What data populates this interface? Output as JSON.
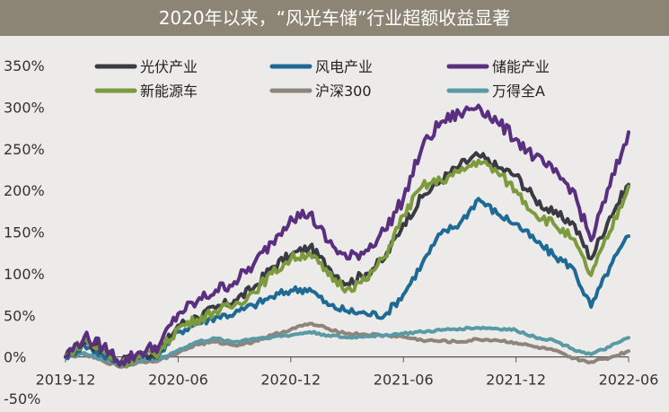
{
  "chart_data": {
    "type": "line",
    "title": "2020年以来，“风光车储”行业超额收益显著",
    "xlabel": "",
    "ylabel": "",
    "x_ticks": [
      "2019-12",
      "2020-06",
      "2020-12",
      "2021-06",
      "2021-12",
      "2022-06"
    ],
    "y_ticks": [
      "350%",
      "300%",
      "250%",
      "200%",
      "150%",
      "100%",
      "50%",
      "0%",
      "-50%"
    ],
    "ylim": [
      -50,
      350
    ],
    "xlim": [
      "2019-12",
      "2022-06"
    ],
    "grid": false,
    "legend_position": "top",
    "series": [
      {
        "name": "光伏产业",
        "color": "#3a3a44",
        "points": [
          [
            "2019-12",
            0
          ],
          [
            "2020-01",
            18
          ],
          [
            "2020-02",
            8
          ],
          [
            "2020-03",
            -5
          ],
          [
            "2020-04",
            2
          ],
          [
            "2020-05",
            6
          ],
          [
            "2020-06",
            38
          ],
          [
            "2020-07",
            48
          ],
          [
            "2020-08",
            58
          ],
          [
            "2020-09",
            68
          ],
          [
            "2020-10",
            82
          ],
          [
            "2020-11",
            108
          ],
          [
            "2020-12",
            122
          ],
          [
            "2021-01",
            132
          ],
          [
            "2021-02",
            108
          ],
          [
            "2021-03",
            88
          ],
          [
            "2021-04",
            100
          ],
          [
            "2021-05",
            118
          ],
          [
            "2021-06",
            160
          ],
          [
            "2021-07",
            192
          ],
          [
            "2021-08",
            212
          ],
          [
            "2021-09",
            230
          ],
          [
            "2021-10",
            242
          ],
          [
            "2021-11",
            228
          ],
          [
            "2021-12",
            218
          ],
          [
            "2022-01",
            190
          ],
          [
            "2022-02",
            172
          ],
          [
            "2022-03",
            162
          ],
          [
            "2022-04",
            118
          ],
          [
            "2022-05",
            168
          ],
          [
            "2022-06",
            207
          ]
        ]
      },
      {
        "name": "风电产业",
        "color": "#1e6a95",
        "points": [
          [
            "2019-12",
            0
          ],
          [
            "2020-01",
            14
          ],
          [
            "2020-02",
            2
          ],
          [
            "2020-03",
            -8
          ],
          [
            "2020-04",
            0
          ],
          [
            "2020-05",
            4
          ],
          [
            "2020-06",
            30
          ],
          [
            "2020-07",
            40
          ],
          [
            "2020-08",
            48
          ],
          [
            "2020-09",
            52
          ],
          [
            "2020-10",
            62
          ],
          [
            "2020-11",
            72
          ],
          [
            "2020-12",
            80
          ],
          [
            "2021-01",
            82
          ],
          [
            "2021-02",
            62
          ],
          [
            "2021-03",
            55
          ],
          [
            "2021-04",
            52
          ],
          [
            "2021-05",
            50
          ],
          [
            "2021-06",
            75
          ],
          [
            "2021-07",
            112
          ],
          [
            "2021-08",
            148
          ],
          [
            "2021-09",
            160
          ],
          [
            "2021-10",
            190
          ],
          [
            "2021-11",
            172
          ],
          [
            "2021-12",
            160
          ],
          [
            "2022-01",
            140
          ],
          [
            "2022-02",
            122
          ],
          [
            "2022-03",
            108
          ],
          [
            "2022-04",
            60
          ],
          [
            "2022-05",
            108
          ],
          [
            "2022-06",
            145
          ]
        ]
      },
      {
        "name": "储能产业",
        "color": "#5a2f7f",
        "points": [
          [
            "2019-12",
            0
          ],
          [
            "2020-01",
            24
          ],
          [
            "2020-02",
            12
          ],
          [
            "2020-03",
            -6
          ],
          [
            "2020-04",
            6
          ],
          [
            "2020-05",
            14
          ],
          [
            "2020-06",
            52
          ],
          [
            "2020-07",
            66
          ],
          [
            "2020-08",
            80
          ],
          [
            "2020-09",
            90
          ],
          [
            "2020-10",
            110
          ],
          [
            "2020-11",
            138
          ],
          [
            "2020-12",
            168
          ],
          [
            "2021-01",
            172
          ],
          [
            "2021-02",
            138
          ],
          [
            "2021-03",
            118
          ],
          [
            "2021-04",
            128
          ],
          [
            "2021-05",
            152
          ],
          [
            "2021-06",
            190
          ],
          [
            "2021-07",
            252
          ],
          [
            "2021-08",
            282
          ],
          [
            "2021-09",
            292
          ],
          [
            "2021-10",
            302
          ],
          [
            "2021-11",
            282
          ],
          [
            "2021-12",
            262
          ],
          [
            "2022-01",
            240
          ],
          [
            "2022-02",
            222
          ],
          [
            "2022-03",
            202
          ],
          [
            "2022-04",
            140
          ],
          [
            "2022-05",
            205
          ],
          [
            "2022-06",
            270
          ]
        ]
      },
      {
        "name": "新能源车",
        "color": "#7d9a3c",
        "points": [
          [
            "2019-12",
            0
          ],
          [
            "2020-01",
            20
          ],
          [
            "2020-02",
            6
          ],
          [
            "2020-03",
            -8
          ],
          [
            "2020-04",
            0
          ],
          [
            "2020-05",
            6
          ],
          [
            "2020-06",
            35
          ],
          [
            "2020-07",
            45
          ],
          [
            "2020-08",
            55
          ],
          [
            "2020-09",
            62
          ],
          [
            "2020-10",
            78
          ],
          [
            "2020-11",
            100
          ],
          [
            "2020-12",
            118
          ],
          [
            "2021-01",
            125
          ],
          [
            "2021-02",
            98
          ],
          [
            "2021-03",
            82
          ],
          [
            "2021-04",
            92
          ],
          [
            "2021-05",
            120
          ],
          [
            "2021-06",
            170
          ],
          [
            "2021-07",
            205
          ],
          [
            "2021-08",
            212
          ],
          [
            "2021-09",
            222
          ],
          [
            "2021-10",
            236
          ],
          [
            "2021-11",
            222
          ],
          [
            "2021-12",
            200
          ],
          [
            "2022-01",
            172
          ],
          [
            "2022-02",
            160
          ],
          [
            "2022-03",
            142
          ],
          [
            "2022-04",
            98
          ],
          [
            "2022-05",
            150
          ],
          [
            "2022-06",
            205
          ]
        ]
      },
      {
        "name": "沪深300",
        "color": "#8e847c",
        "points": [
          [
            "2019-12",
            0
          ],
          [
            "2020-01",
            3
          ],
          [
            "2020-02",
            -5
          ],
          [
            "2020-03",
            -12
          ],
          [
            "2020-04",
            -6
          ],
          [
            "2020-05",
            -4
          ],
          [
            "2020-06",
            5
          ],
          [
            "2020-07",
            15
          ],
          [
            "2020-08",
            18
          ],
          [
            "2020-09",
            14
          ],
          [
            "2020-10",
            18
          ],
          [
            "2020-11",
            26
          ],
          [
            "2020-12",
            33
          ],
          [
            "2021-01",
            40
          ],
          [
            "2021-02",
            34
          ],
          [
            "2021-03",
            28
          ],
          [
            "2021-04",
            27
          ],
          [
            "2021-05",
            26
          ],
          [
            "2021-06",
            24
          ],
          [
            "2021-07",
            20
          ],
          [
            "2021-08",
            19
          ],
          [
            "2021-09",
            18
          ],
          [
            "2021-10",
            21
          ],
          [
            "2021-11",
            20
          ],
          [
            "2021-12",
            17
          ],
          [
            "2022-01",
            12
          ],
          [
            "2022-02",
            8
          ],
          [
            "2022-03",
            -2
          ],
          [
            "2022-04",
            -6
          ],
          [
            "2022-05",
            -1
          ],
          [
            "2022-06",
            7
          ]
        ]
      },
      {
        "name": "万得全A",
        "color": "#5a9aa4",
        "points": [
          [
            "2019-12",
            0
          ],
          [
            "2020-01",
            5
          ],
          [
            "2020-02",
            -3
          ],
          [
            "2020-03",
            -8
          ],
          [
            "2020-04",
            -4
          ],
          [
            "2020-05",
            -2
          ],
          [
            "2020-06",
            8
          ],
          [
            "2020-07",
            18
          ],
          [
            "2020-08",
            22
          ],
          [
            "2020-09",
            18
          ],
          [
            "2020-10",
            22
          ],
          [
            "2020-11",
            24
          ],
          [
            "2020-12",
            26
          ],
          [
            "2021-01",
            30
          ],
          [
            "2021-02",
            26
          ],
          [
            "2021-03",
            23
          ],
          [
            "2021-04",
            25
          ],
          [
            "2021-05",
            26
          ],
          [
            "2021-06",
            28
          ],
          [
            "2021-07",
            30
          ],
          [
            "2021-08",
            32
          ],
          [
            "2021-09",
            34
          ],
          [
            "2021-10",
            35
          ],
          [
            "2021-11",
            34
          ],
          [
            "2021-12",
            32
          ],
          [
            "2022-01",
            24
          ],
          [
            "2022-02",
            20
          ],
          [
            "2022-03",
            10
          ],
          [
            "2022-04",
            3
          ],
          [
            "2022-05",
            12
          ],
          [
            "2022-06",
            23
          ]
        ]
      }
    ]
  }
}
